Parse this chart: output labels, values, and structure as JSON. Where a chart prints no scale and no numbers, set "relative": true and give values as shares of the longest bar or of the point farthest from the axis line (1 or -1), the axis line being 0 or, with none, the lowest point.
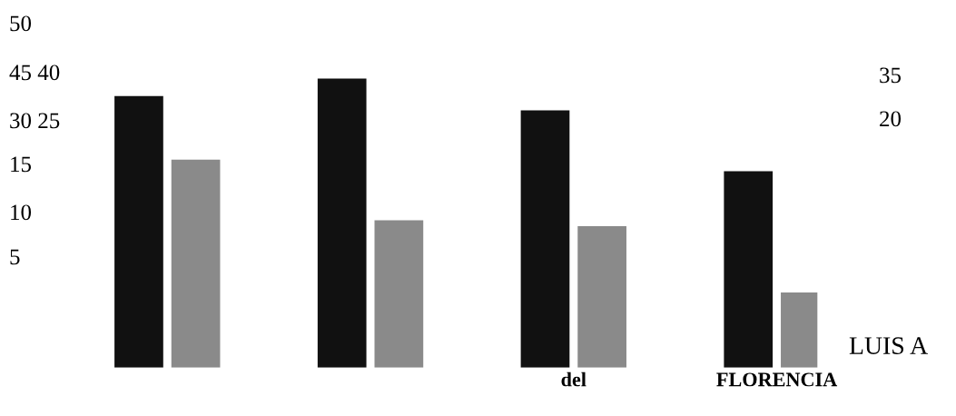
{
  "chart_data": {
    "type": "bar",
    "relative": true,
    "categories": [
      null,
      null,
      "del",
      "FLORENCIA"
    ],
    "series": [
      {
        "color": "#111111",
        "values": [
          0.94,
          1.0,
          0.89,
          0.68
        ]
      },
      {
        "color": "#8a8a8a",
        "values": [
          0.72,
          0.51,
          0.49,
          0.26
        ]
      }
    ],
    "annotations": [
      "50",
      "45 40",
      "30 25",
      "15",
      "10",
      "5",
      "35",
      "20",
      "LUIS A"
    ],
    "grid": false,
    "legend": false
  }
}
